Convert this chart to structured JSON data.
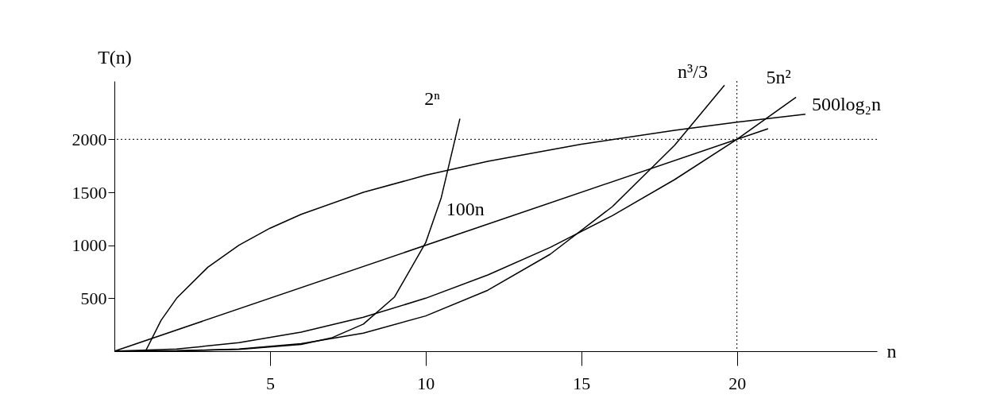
{
  "chart_data": {
    "type": "line",
    "xlabel": "n",
    "ylabel": "T(n)",
    "xlim": [
      0,
      24.5
    ],
    "ylim": [
      0,
      2550
    ],
    "xticks": [
      5,
      10,
      15,
      20
    ],
    "yticks": [
      500,
      1000,
      1500,
      2000
    ],
    "grid": false,
    "legend": false,
    "line_style": "solid",
    "ref_lines": [
      {
        "axis": "y",
        "value": 2000,
        "line_style": "dotted"
      },
      {
        "axis": "x",
        "value": 20,
        "line_style": "dotted"
      }
    ],
    "series": [
      {
        "name": "2ⁿ",
        "color": "#000000",
        "x": [
          0,
          2,
          4,
          6,
          7,
          8,
          9,
          10,
          10.5,
          11.1
        ],
        "values": [
          1,
          4,
          16,
          64,
          128,
          256,
          512,
          1024,
          1448,
          2195
        ]
      },
      {
        "name": "n³/3",
        "color": "#000000",
        "x": [
          0,
          2,
          4,
          6,
          8,
          10,
          12,
          14,
          16,
          18,
          19.6
        ],
        "values": [
          0,
          3,
          21,
          72,
          171,
          333,
          576,
          915,
          1365,
          1944,
          2510
        ]
      },
      {
        "name": "5n²",
        "color": "#000000",
        "x": [
          0,
          2,
          4,
          6,
          8,
          10,
          12,
          14,
          16,
          18,
          20,
          21.9
        ],
        "values": [
          0,
          20,
          80,
          180,
          320,
          500,
          720,
          980,
          1280,
          1620,
          2000,
          2398
        ]
      },
      {
        "name": "500log₂n",
        "color": "#000000",
        "x": [
          1,
          1.5,
          2,
          3,
          4,
          5,
          6,
          8,
          10,
          12,
          15,
          18,
          20,
          22.2
        ],
        "values": [
          0,
          292,
          500,
          792,
          1000,
          1161,
          1292,
          1500,
          1661,
          1792,
          1953,
          2085,
          2161,
          2236
        ]
      },
      {
        "name": "100n",
        "color": "#000000",
        "x": [
          0,
          11.4,
          21
        ],
        "values": [
          0,
          1140,
          2100
        ]
      }
    ]
  }
}
